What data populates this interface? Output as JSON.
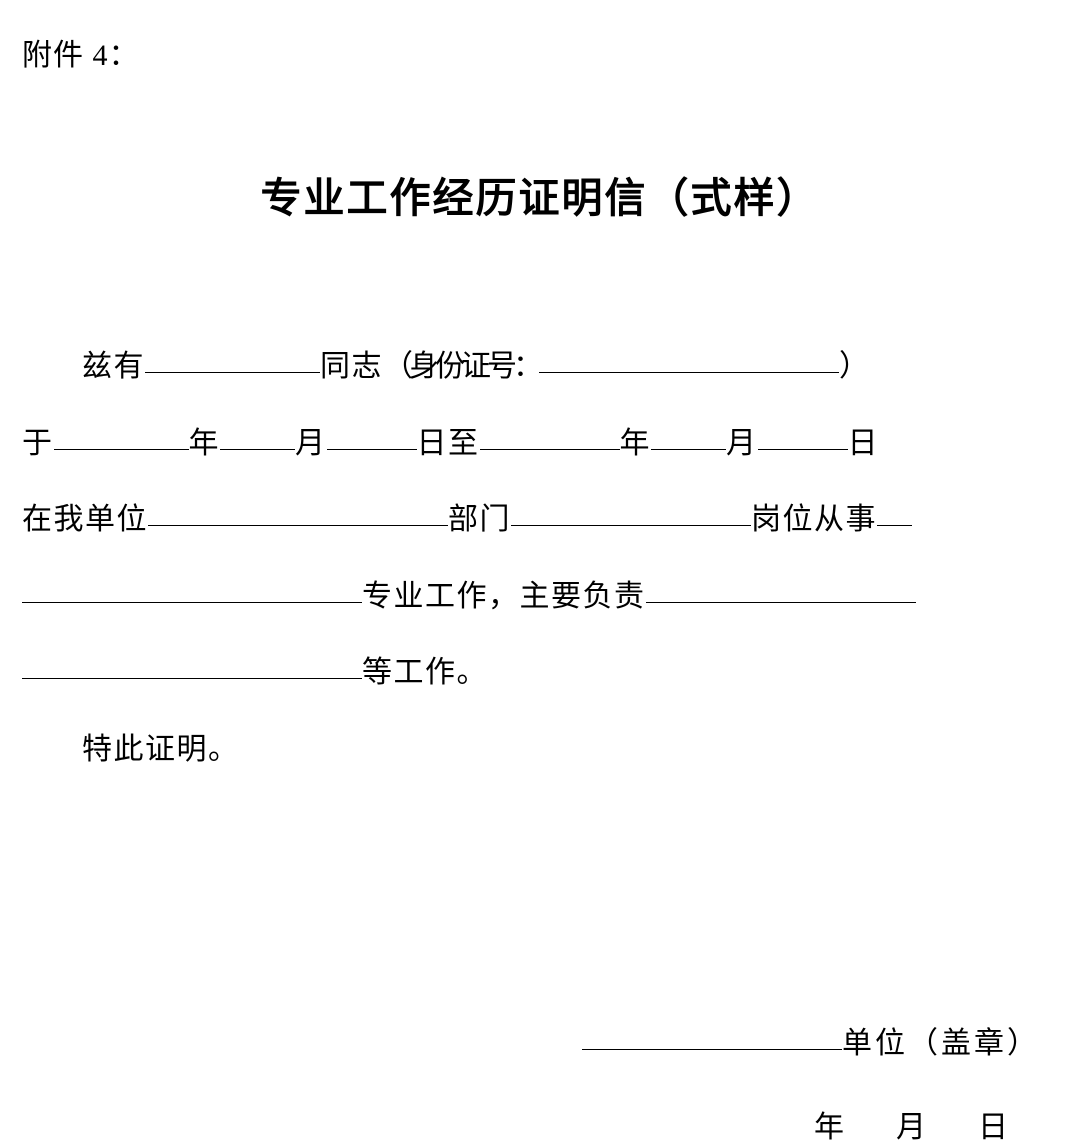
{
  "attachment_label": "附件 4：",
  "title": "专业工作经历证明信（式样）",
  "body": {
    "text_ziyou": "兹有",
    "text_tongzhi": "同志",
    "text_id_prefix": "（身份证号：",
    "text_id_suffix": "）",
    "text_yu": "于",
    "text_year": "年",
    "text_month": "月",
    "text_day": "日",
    "text_to": "至",
    "text_inunit": "在我单位",
    "text_dept": "部门",
    "text_post": "岗位从事",
    "text_specialty": "专业工作，主要负责",
    "text_etc": "等工作。",
    "text_confirm": "特此证明。"
  },
  "footer": {
    "unit_label": "单位（盖章）",
    "date_year": "年",
    "date_month": "月",
    "date_day": "日"
  },
  "colors": {
    "background": "#ffffff",
    "text": "#000000",
    "underline": "#000000"
  },
  "typography": {
    "body_fontsize": 30,
    "title_fontsize": 41,
    "title_family": "SimHei",
    "body_family": "SimSun",
    "line_height": 2.55
  }
}
